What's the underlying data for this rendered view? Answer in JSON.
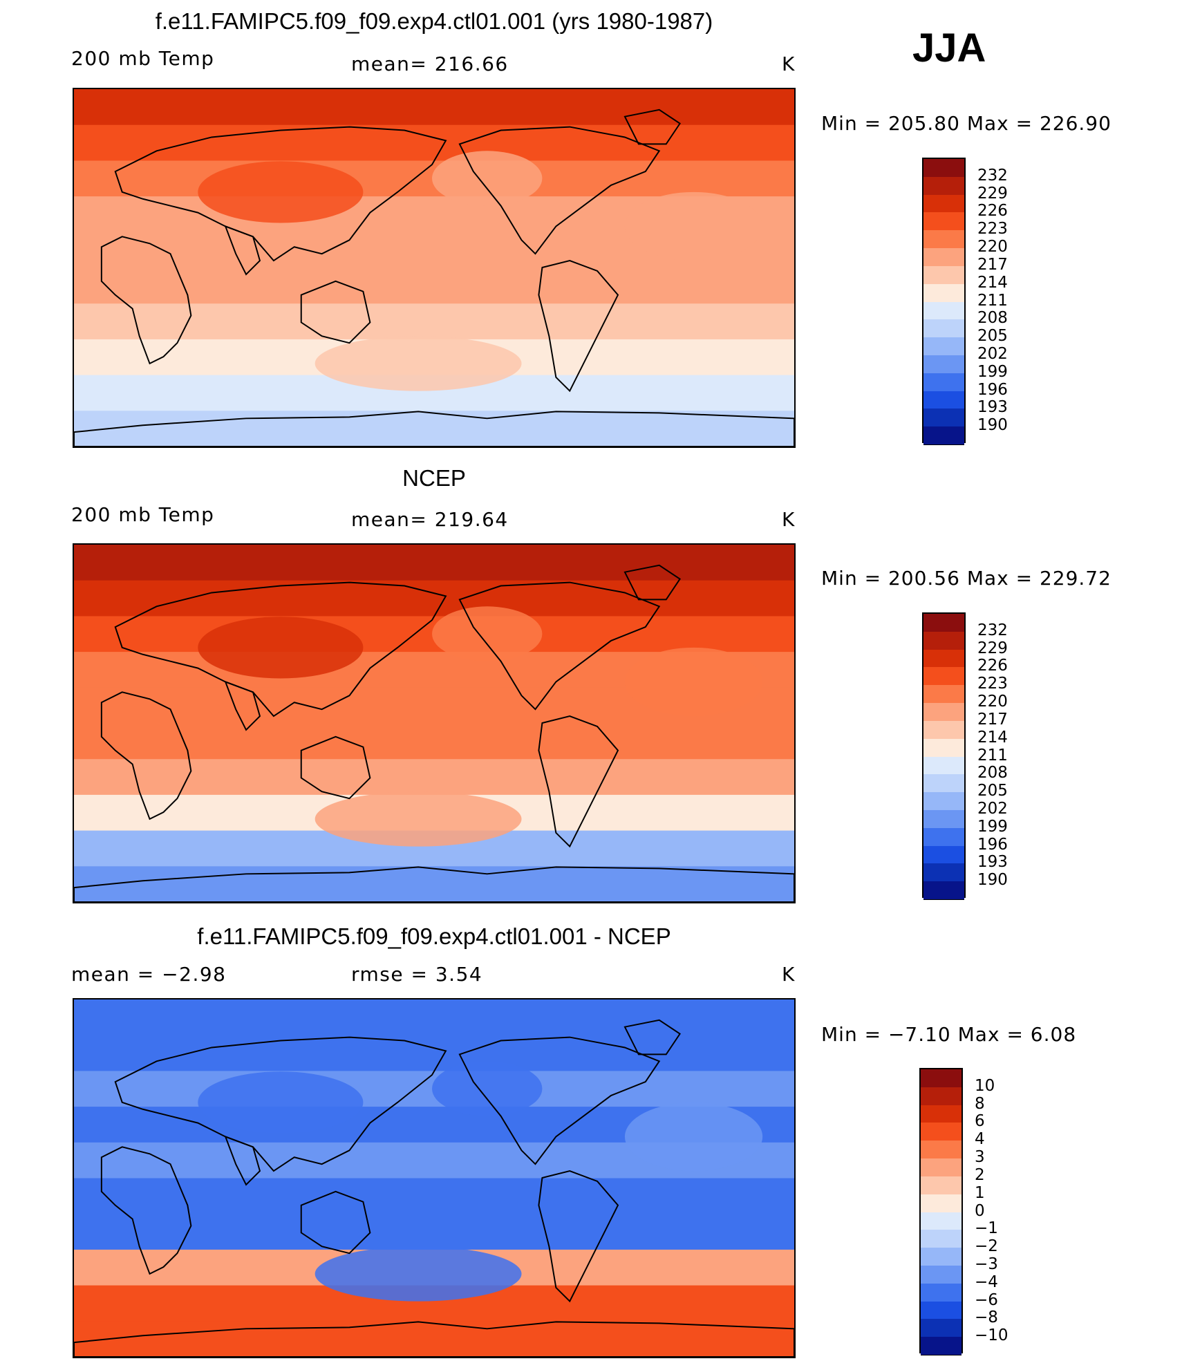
{
  "season": "JJA",
  "panels": [
    {
      "title": "f.e11.FAMIPC5.f09_f09.exp4.ctl01.001 (yrs 1980-1987)",
      "left_label": "200 mb Temp",
      "center_label": "mean=  216.66",
      "units": "K",
      "minmax": "Min  =  205.80  Max  =  226.90",
      "colorbar_id": "abs"
    },
    {
      "title": "NCEP",
      "left_label": "200 mb Temp",
      "center_label": "mean=  219.64",
      "units": "K",
      "minmax": "Min  =  200.56  Max  =  229.72",
      "colorbar_id": "abs"
    },
    {
      "title": "f.e11.FAMIPC5.f09_f09.exp4.ctl01.001 - NCEP",
      "left_label": "mean  =    −2.98",
      "center_label": "rmse  =    3.54",
      "units": "K",
      "minmax": "Min  =   −7.10  Max  =     6.08",
      "colorbar_id": "diff"
    }
  ],
  "colorbars": {
    "abs": {
      "labels": [
        "232",
        "229",
        "226",
        "223",
        "220",
        "217",
        "214",
        "211",
        "208",
        "205",
        "202",
        "199",
        "196",
        "193",
        "190"
      ],
      "colors": [
        "#8b0e0e",
        "#b51f0a",
        "#d83008",
        "#f44f1c",
        "#fb7a48",
        "#fca37e",
        "#fdc7ac",
        "#fdeadb",
        "#dce9fb",
        "#bdd3fa",
        "#96b7f8",
        "#6b96f3",
        "#3e72ee",
        "#1b4fe2",
        "#0c31b4",
        "#07148a"
      ]
    },
    "diff": {
      "labels": [
        "10",
        "8",
        "6",
        "4",
        "3",
        "2",
        "1",
        "0",
        "−1",
        "−2",
        "−3",
        "−4",
        "−6",
        "−8",
        "−10"
      ],
      "colors": [
        "#8b0e0e",
        "#b51f0a",
        "#d83008",
        "#f44f1c",
        "#fb7a48",
        "#fca37e",
        "#fdc7ac",
        "#fdeadb",
        "#dce9fb",
        "#bdd3fa",
        "#96b7f8",
        "#6b96f3",
        "#3e72ee",
        "#1b4fe2",
        "#0c31b4",
        "#07148a"
      ]
    }
  },
  "maps": [
    {
      "description_levels": "model 200 mb temperature",
      "bands": [
        "#d83008",
        "#f44f1c",
        "#fb7a48",
        "#fca37e",
        "#fca37e",
        "#fca37e",
        "#fdc7ac",
        "#fdeadb",
        "#dce9fb",
        "#bdd3fa"
      ]
    },
    {
      "description_levels": "NCEP 200 mb temperature",
      "bands": [
        "#b51f0a",
        "#d83008",
        "#f44f1c",
        "#fb7a48",
        "#fb7a48",
        "#fb7a48",
        "#fca37e",
        "#fdeadb",
        "#96b7f8",
        "#6b96f3"
      ]
    },
    {
      "description_levels": "difference",
      "bands": [
        "#3e72ee",
        "#3e72ee",
        "#6b96f3",
        "#3e72ee",
        "#6b96f3",
        "#3e72ee",
        "#3e72ee",
        "#fca37e",
        "#f44f1c",
        "#f44f1c"
      ]
    }
  ]
}
